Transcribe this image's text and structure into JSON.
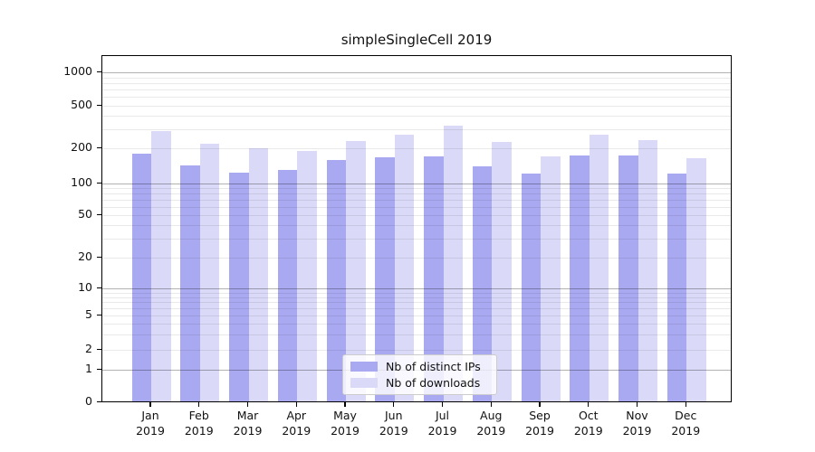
{
  "chart_data": {
    "type": "bar",
    "title": "simpleSingleCell 2019",
    "categories": [
      "Jan",
      "Feb",
      "Mar",
      "Apr",
      "May",
      "Jun",
      "Jul",
      "Aug",
      "Sep",
      "Oct",
      "Nov",
      "Dec"
    ],
    "category_year": "2019",
    "series": [
      {
        "name": "Nb of distinct IPs",
        "color": "#a9a9f2",
        "values": [
          180,
          143,
          124,
          131,
          159,
          167,
          170,
          141,
          121,
          175,
          175,
          121
        ]
      },
      {
        "name": "Nb of downloads",
        "color": "#dadaf8",
        "values": [
          290,
          219,
          200,
          189,
          236,
          266,
          323,
          231,
          171,
          266,
          238,
          165
        ]
      }
    ],
    "yticks": [
      0,
      1,
      2,
      5,
      10,
      20,
      50,
      100,
      200,
      500,
      1000
    ],
    "ylim": [
      0,
      1350
    ],
    "yscale": "symlog",
    "grid": {
      "major_at": [
        1,
        10,
        100,
        1000
      ],
      "minor_multiples": [
        2,
        3,
        4,
        5,
        6,
        7,
        8,
        9
      ]
    },
    "legend": {
      "position": "lower-center",
      "entries": [
        "Nb of distinct IPs",
        "Nb of downloads"
      ]
    }
  }
}
